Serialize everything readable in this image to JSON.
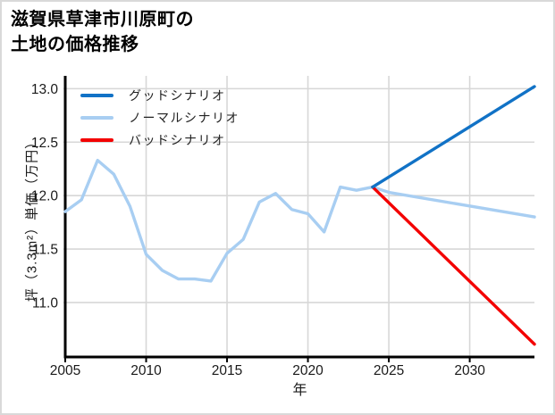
{
  "page": {
    "background": "#ffffff",
    "border_color": "#d9d9d9"
  },
  "title": {
    "line1": "滋賀県草津市川原町の",
    "line2": "土地の価格推移"
  },
  "chart_data": {
    "type": "line",
    "title": "滋賀県草津市川原町の土地の価格推移",
    "xlabel": "年",
    "ylabel": "坪（3.3m²）単価（万円）",
    "xlim": [
      2005,
      2034
    ],
    "ylim": [
      10.49,
      13.12
    ],
    "x_ticks": [
      2005,
      2010,
      2015,
      2020,
      2025,
      2030
    ],
    "y_ticks": [
      11.0,
      11.5,
      12.0,
      12.5,
      13.0
    ],
    "grid": true,
    "legend_position": "top-left-inside",
    "axis_color": "#000000",
    "grid_color": "#d7d7d7",
    "tick_label_color": "#1a1a1a",
    "series": [
      {
        "name": "グッドシナリオ",
        "color": "#1172c6",
        "zorder": 3,
        "x": [
          2024,
          2034
        ],
        "y": [
          12.08,
          13.02
        ]
      },
      {
        "name": "ノーマルシナリオ",
        "color": "#a8cef2",
        "zorder": 1,
        "x": [
          2005,
          2006,
          2007,
          2008,
          2009,
          2010,
          2011,
          2012,
          2013,
          2014,
          2015,
          2016,
          2017,
          2018,
          2019,
          2020,
          2021,
          2022,
          2023,
          2024,
          2025,
          2034
        ],
        "y": [
          11.85,
          11.96,
          12.33,
          12.2,
          11.9,
          11.45,
          11.3,
          11.22,
          11.22,
          11.2,
          11.46,
          11.59,
          11.94,
          12.02,
          11.87,
          11.83,
          11.66,
          12.08,
          12.05,
          12.08,
          12.03,
          11.8
        ]
      },
      {
        "name": "バッドシナリオ",
        "color": "#f30000",
        "zorder": 2,
        "x": [
          2024,
          2034
        ],
        "y": [
          12.08,
          10.61
        ]
      }
    ]
  }
}
